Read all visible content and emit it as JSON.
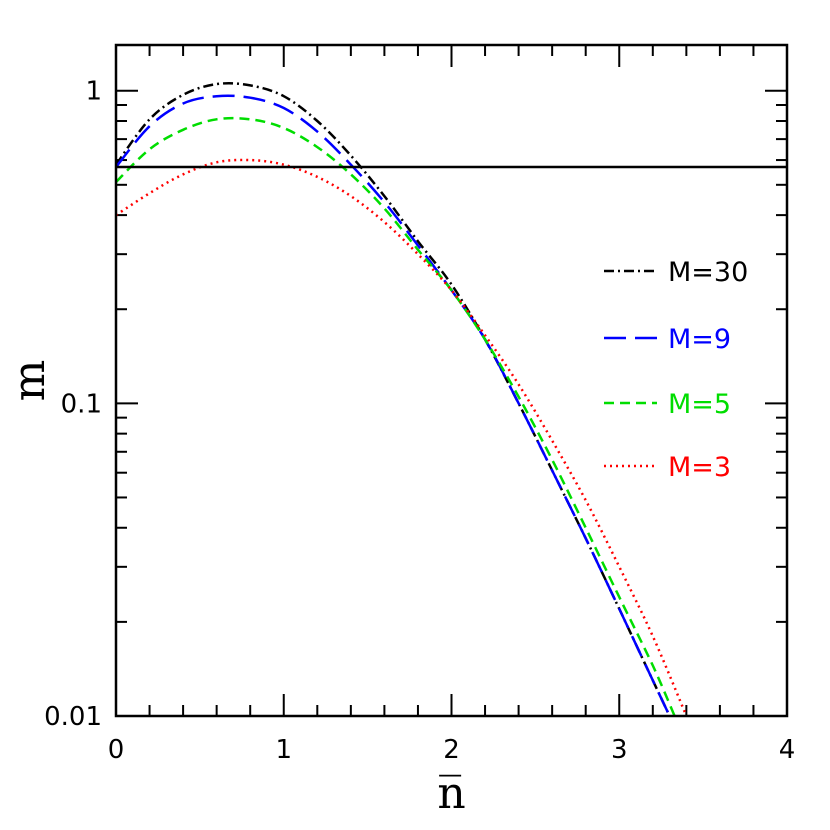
{
  "chart_data": {
    "type": "line",
    "xlabel": "n̅",
    "ylabel": "m",
    "xlim": [
      0,
      4
    ],
    "ylim": [
      0.01,
      1.4
    ],
    "yscale": "log",
    "x_ticks": [
      "0",
      "1",
      "2",
      "3",
      "4"
    ],
    "y_ticks": [
      "0.01",
      "0.1",
      "1"
    ],
    "grid": false,
    "legend_position": "right",
    "reference_line": {
      "y": 0.57,
      "color": "#000000",
      "style": "solid"
    },
    "series": [
      {
        "name": "M=30",
        "color": "#000000",
        "style": "dashdot",
        "x": [
          0,
          0.2,
          0.4,
          0.6,
          0.8,
          1.0,
          1.2,
          1.4,
          1.6,
          1.8,
          2.0,
          2.2,
          2.4,
          2.6,
          2.8,
          3.0,
          3.2,
          3.3
        ],
        "y": [
          0.58,
          0.81,
          0.97,
          1.05,
          1.04,
          0.96,
          0.8,
          0.62,
          0.46,
          0.33,
          0.24,
          0.16,
          0.1,
          0.061,
          0.037,
          0.022,
          0.013,
          0.01
        ]
      },
      {
        "name": "M=9",
        "color": "#0000ff",
        "style": "longdash",
        "x": [
          0,
          0.2,
          0.4,
          0.6,
          0.8,
          1.0,
          1.2,
          1.4,
          1.6,
          1.8,
          2.0,
          2.2,
          2.4,
          2.6,
          2.8,
          3.0,
          3.2,
          3.3
        ],
        "y": [
          0.57,
          0.77,
          0.91,
          0.96,
          0.95,
          0.88,
          0.74,
          0.58,
          0.44,
          0.32,
          0.23,
          0.16,
          0.1,
          0.061,
          0.037,
          0.022,
          0.013,
          0.01
        ]
      },
      {
        "name": "M=5",
        "color": "#00dd00",
        "style": "dashed",
        "x": [
          0,
          0.2,
          0.4,
          0.6,
          0.8,
          1.0,
          1.2,
          1.4,
          1.6,
          1.8,
          2.0,
          2.2,
          2.4,
          2.6,
          2.8,
          3.0,
          3.2,
          3.33
        ],
        "y": [
          0.51,
          0.65,
          0.75,
          0.81,
          0.81,
          0.76,
          0.66,
          0.54,
          0.42,
          0.31,
          0.23,
          0.16,
          0.105,
          0.066,
          0.04,
          0.024,
          0.0145,
          0.01
        ]
      },
      {
        "name": "M=3",
        "color": "#ff0000",
        "style": "dotted",
        "x": [
          0,
          0.2,
          0.4,
          0.6,
          0.8,
          1.0,
          1.2,
          1.4,
          1.6,
          1.8,
          2.0,
          2.2,
          2.4,
          2.6,
          2.8,
          3.0,
          3.2,
          3.4
        ],
        "y": [
          0.4,
          0.47,
          0.54,
          0.59,
          0.6,
          0.58,
          0.53,
          0.46,
          0.38,
          0.3,
          0.23,
          0.165,
          0.115,
          0.076,
          0.049,
          0.03,
          0.018,
          0.01
        ]
      }
    ]
  }
}
